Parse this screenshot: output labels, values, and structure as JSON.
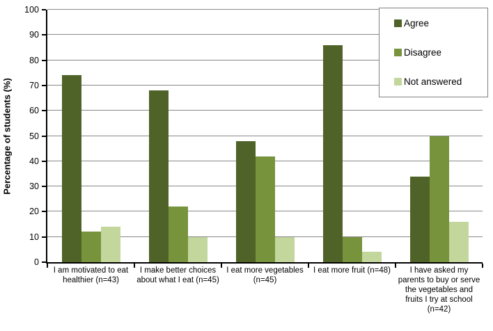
{
  "chart_data": {
    "type": "bar",
    "title": "",
    "xlabel": "",
    "ylabel": "Percentage of students (%)",
    "ylim": [
      0,
      100
    ],
    "ytick_step": 10,
    "grid": true,
    "legend_position": "top-right",
    "categories": [
      "I am motivated to eat healthier (n=43)",
      "I make better choices about what I eat (n=45)",
      "I eat more vegetables (n=45)",
      "I eat more fruit (n=48)",
      "I have asked my parents to buy or serve the vegetables and fruits I try at school (n=42)"
    ],
    "series": [
      {
        "name": "Agree",
        "color": "#4F6228",
        "values": [
          74,
          68,
          48,
          86,
          34
        ]
      },
      {
        "name": "Disagree",
        "color": "#77933C",
        "values": [
          12,
          22,
          42,
          10,
          50
        ]
      },
      {
        "name": "Not answered",
        "color": "#C3D69B",
        "values": [
          14,
          10,
          10,
          4,
          16
        ]
      }
    ]
  },
  "colors": {
    "background": "#FFFFFF",
    "axis": "#000000",
    "gridline": "#878787",
    "tick": "#000000",
    "text": "#000000",
    "legend_border": "#7F7F7F"
  }
}
